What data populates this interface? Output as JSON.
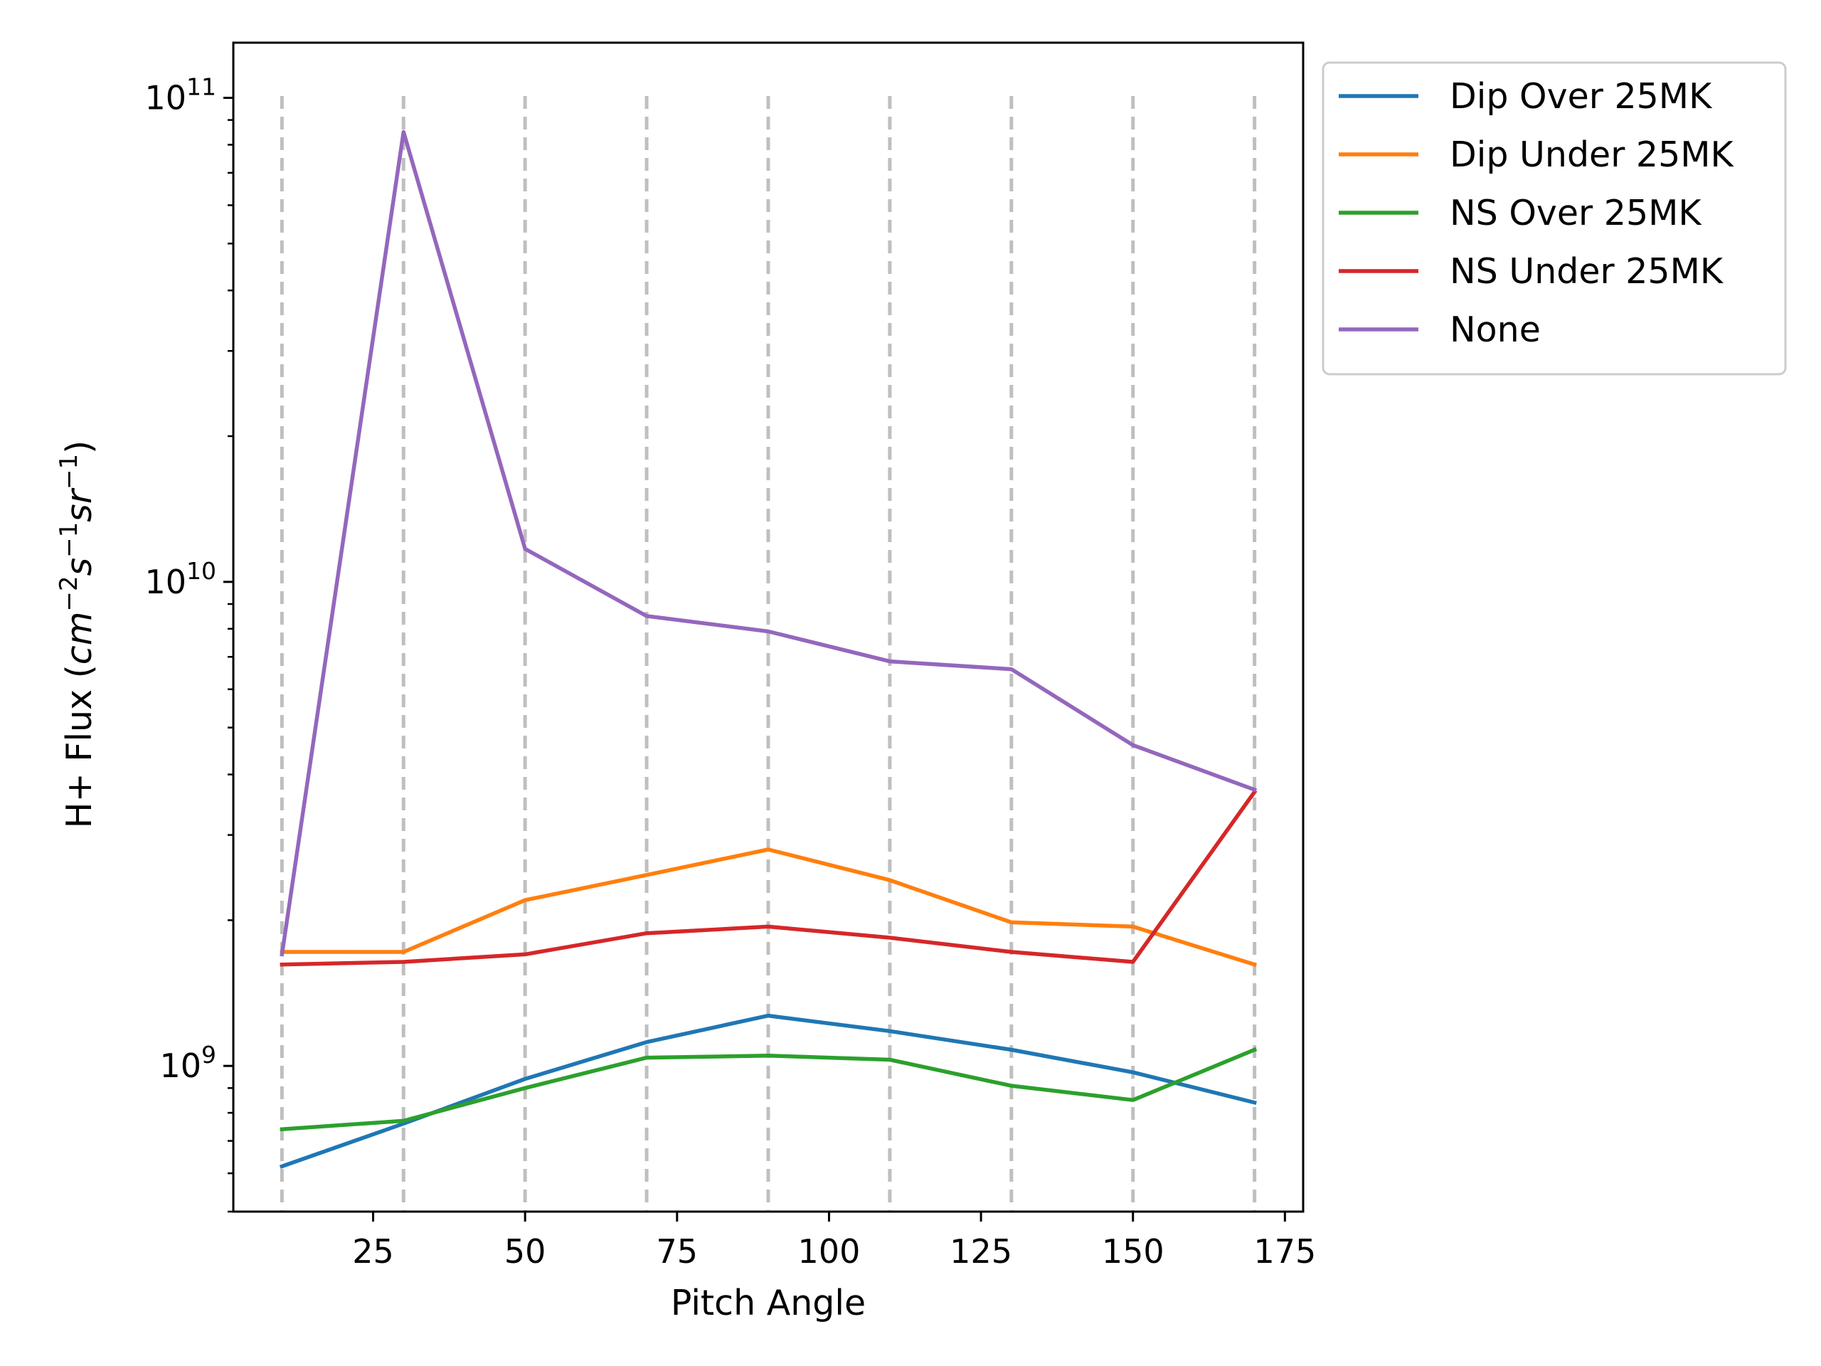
{
  "chart_data": {
    "type": "line",
    "title": "",
    "xlabel": "Pitch Angle",
    "ylabel_prefix": "H+ Flux (",
    "ylabel_units": [
      {
        "base": "cm",
        "exp": "−2"
      },
      {
        "base": "s",
        "exp": "−1"
      },
      {
        "base": "sr",
        "exp": "−1"
      }
    ],
    "ylabel_suffix": ")",
    "yscale": "log",
    "xlim": [
      2,
      178
    ],
    "ylim": [
      500000000,
      130000000000
    ],
    "x_ticks": [
      25,
      50,
      75,
      100,
      125,
      150,
      175
    ],
    "y_major_ticks": [
      {
        "value": 1000000000,
        "base": "10",
        "exp": "9"
      },
      {
        "value": 10000000000,
        "base": "10",
        "exp": "10"
      },
      {
        "value": 100000000000,
        "base": "10",
        "exp": "11"
      }
    ],
    "vlines": [
      10,
      30,
      50,
      70,
      90,
      110,
      130,
      150,
      170
    ],
    "vline_color": "#bfbfbf",
    "legend_position": "outside upper right",
    "x": [
      10,
      30,
      50,
      70,
      90,
      110,
      130,
      150,
      170
    ],
    "series": [
      {
        "name": "Dip Over 25MK",
        "color": "#1f77b4",
        "values": [
          620000000,
          760000000,
          940000000,
          1120000000,
          1270000000,
          1180000000,
          1080000000,
          970000000,
          840000000
        ]
      },
      {
        "name": "Dip Under 25MK",
        "color": "#ff7f0e",
        "values": [
          1720000000,
          1720000000,
          2200000000,
          2480000000,
          2800000000,
          2420000000,
          1980000000,
          1940000000,
          1620000000
        ]
      },
      {
        "name": "NS Over 25MK",
        "color": "#2ca02c",
        "values": [
          740000000,
          770000000,
          900000000,
          1040000000,
          1050000000,
          1030000000,
          910000000,
          850000000,
          1080000000
        ]
      },
      {
        "name": "NS Under 25MK",
        "color": "#d62728",
        "values": [
          1620000000,
          1640000000,
          1700000000,
          1880000000,
          1940000000,
          1840000000,
          1720000000,
          1640000000,
          3680000000
        ]
      },
      {
        "name": "None",
        "color": "#9467bd",
        "values": [
          1700000000,
          85000000000,
          11700000000,
          8500000000,
          7900000000,
          6850000000,
          6600000000,
          4600000000,
          3720000000
        ]
      }
    ]
  }
}
